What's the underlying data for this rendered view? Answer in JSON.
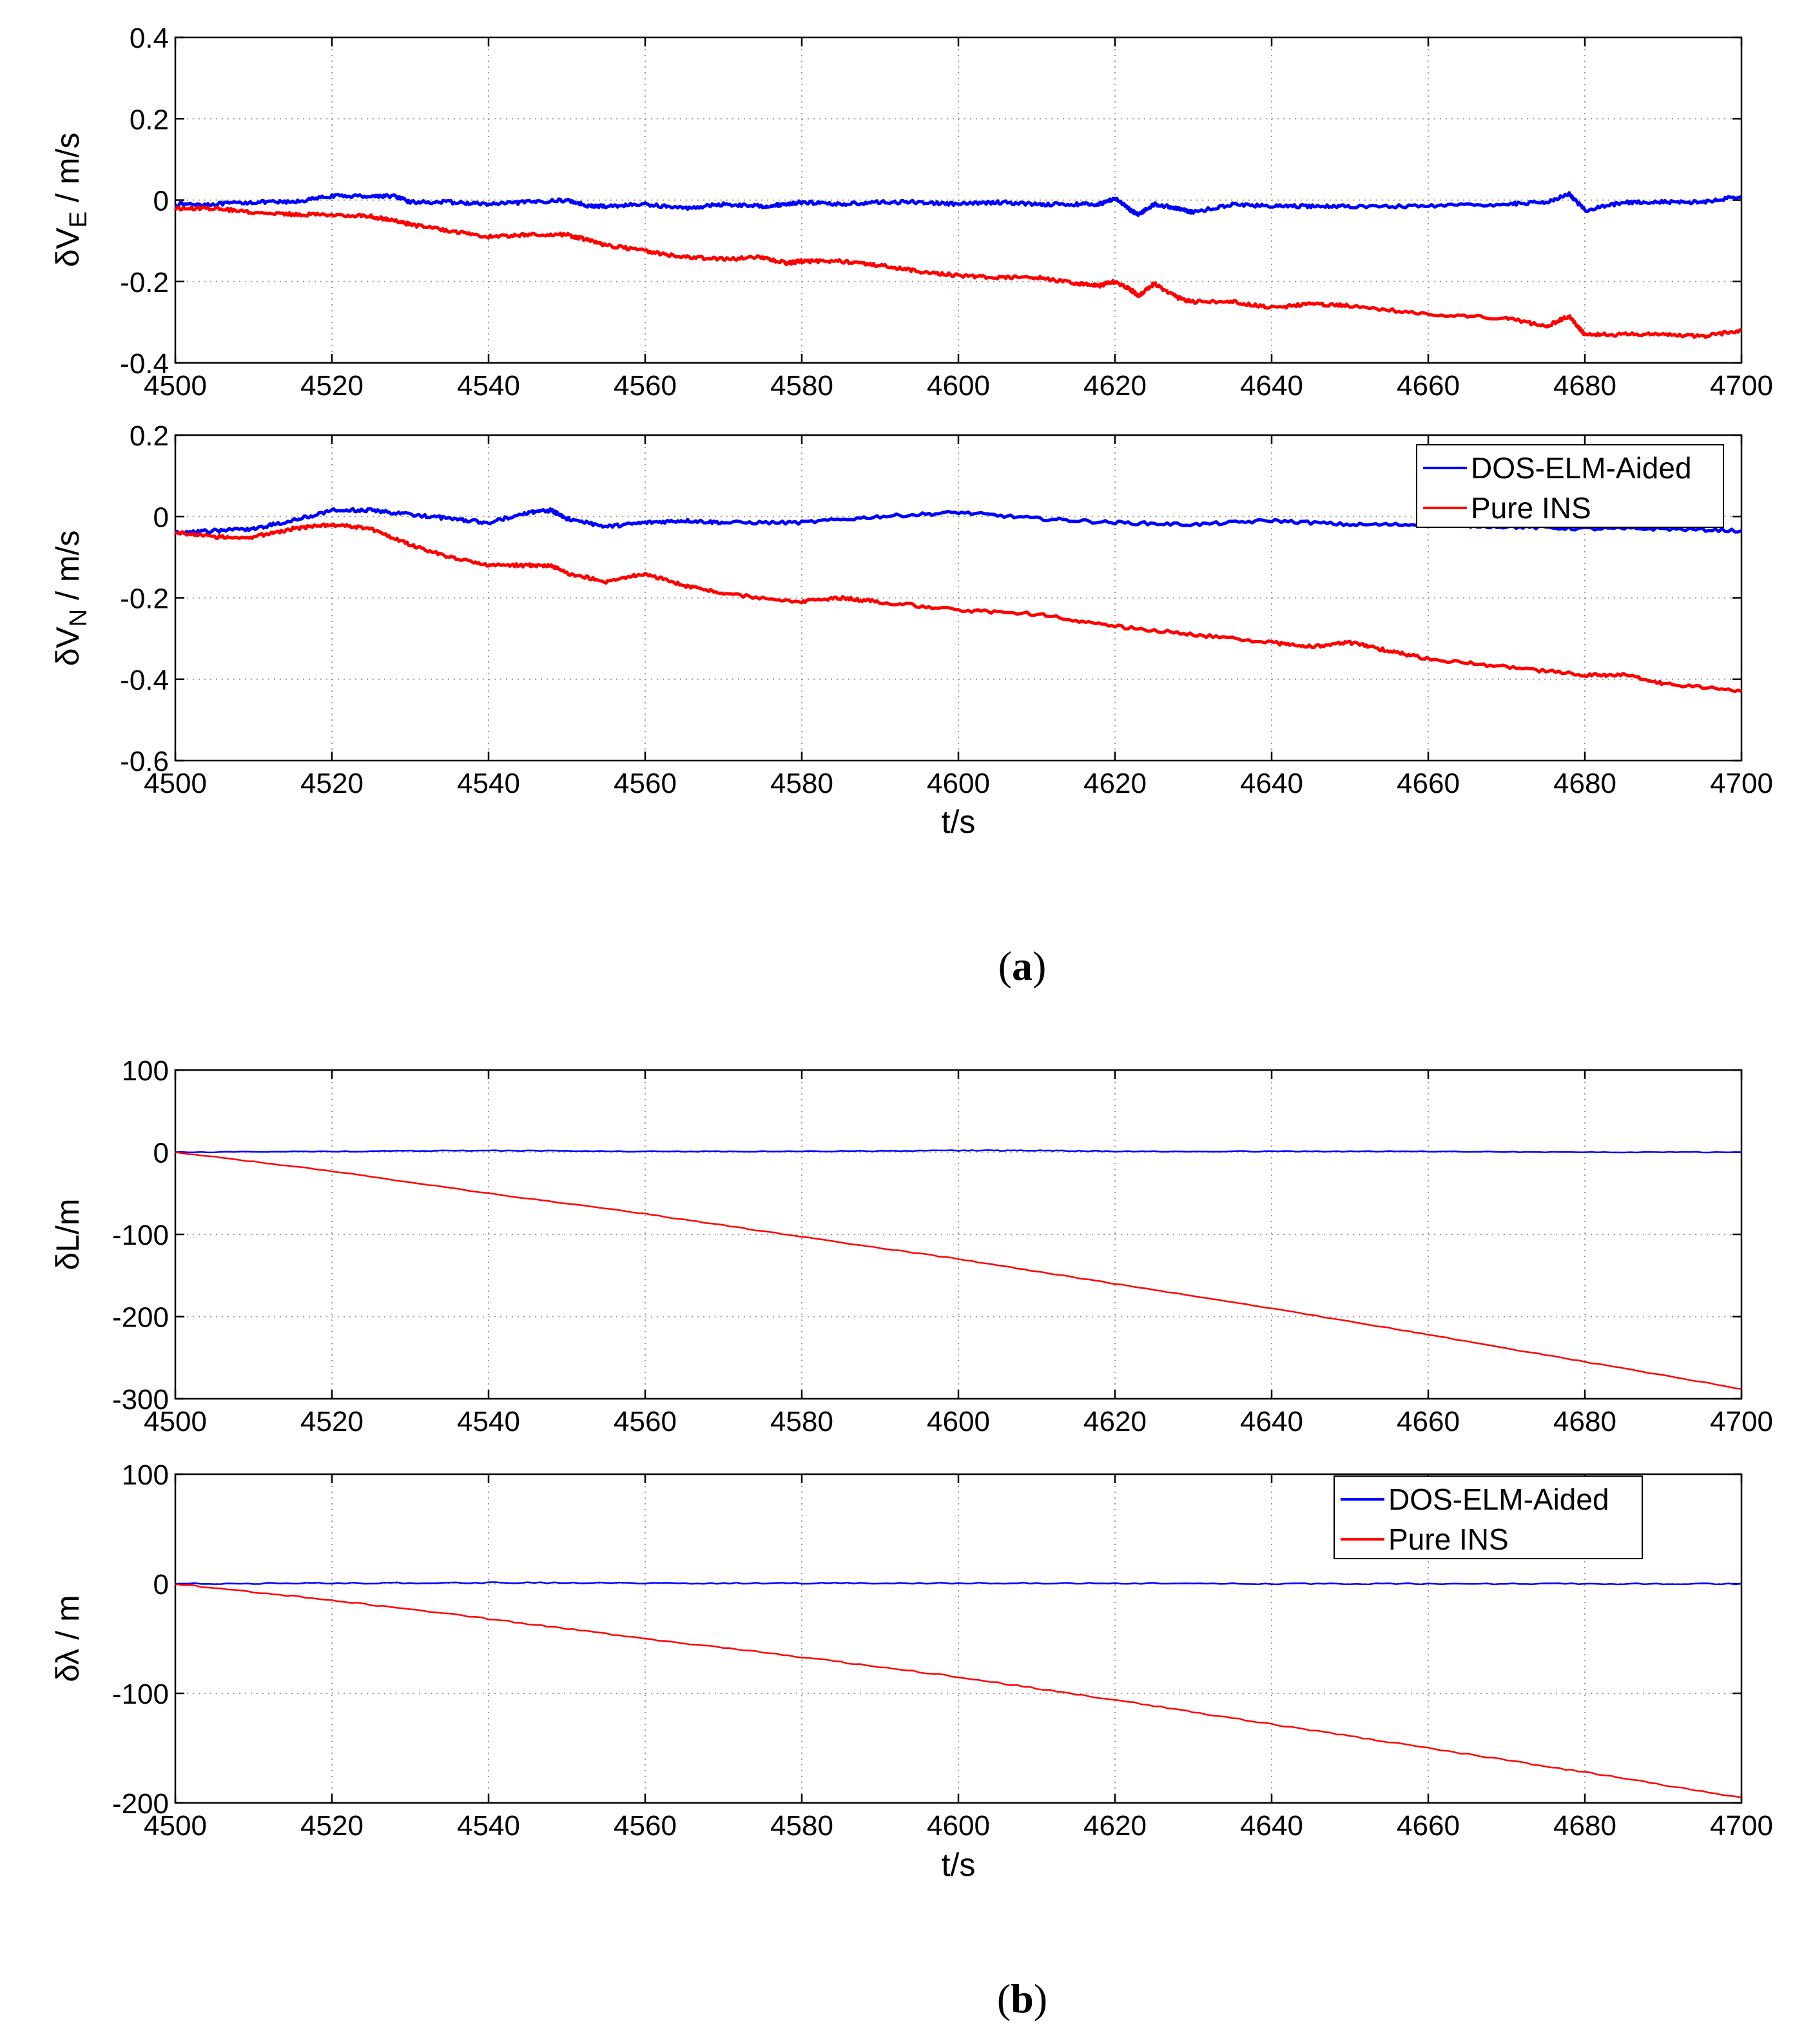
{
  "colors": {
    "blue": "#0000ff",
    "red": "#ff0000"
  },
  "captions": {
    "a": "a",
    "b": "b"
  },
  "chart_data": [
    {
      "type": "line",
      "panel": "a-top",
      "ylabel": {
        "symbol": "δV",
        "sub": "E",
        "unit": " / m/s"
      },
      "xlabel": "",
      "xlim": [
        4500,
        4700
      ],
      "ylim": [
        -0.4,
        0.4
      ],
      "xticks": [
        "4500",
        "4520",
        "4540",
        "4560",
        "4580",
        "4600",
        "4620",
        "4640",
        "4660",
        "4680",
        "4700"
      ],
      "yticks": [
        "0.4",
        "0.2",
        "0",
        "-0.2",
        "-0.4"
      ],
      "grid": true,
      "legend": null,
      "line_width": 5,
      "noise": 0.004,
      "series": [
        {
          "name": "DOS-ELM-Aided",
          "color": "#0000ff",
          "x": [
            4500,
            4505,
            4510,
            4515,
            4520,
            4525,
            4528,
            4530,
            4535,
            4540,
            4545,
            4550,
            4553,
            4555,
            4560,
            4565,
            4570,
            4575,
            4578,
            4580,
            4585,
            4590,
            4595,
            4600,
            4605,
            4610,
            4615,
            4618,
            4620,
            4622,
            4623,
            4625,
            4628,
            4630,
            4635,
            4640,
            4645,
            4650,
            4660,
            4670,
            4675,
            4678,
            4680,
            4685,
            4690,
            4695,
            4700
          ],
          "y": [
            -0.01,
            -0.01,
            -0.005,
            -0.005,
            0.01,
            0.01,
            0.01,
            -0.005,
            -0.005,
            -0.01,
            -0.005,
            0.0,
            -0.015,
            -0.015,
            -0.01,
            -0.02,
            -0.01,
            -0.015,
            -0.01,
            -0.005,
            -0.01,
            -0.005,
            -0.005,
            -0.01,
            -0.005,
            -0.01,
            -0.01,
            -0.01,
            0.005,
            -0.025,
            -0.035,
            -0.01,
            -0.02,
            -0.03,
            -0.01,
            -0.015,
            -0.015,
            -0.015,
            -0.015,
            -0.01,
            -0.005,
            0.015,
            -0.025,
            -0.005,
            -0.005,
            -0.005,
            0.01
          ]
        },
        {
          "name": "Pure INS",
          "color": "#ff0000",
          "x": [
            4500,
            4505,
            4510,
            4515,
            4520,
            4525,
            4528,
            4530,
            4535,
            4540,
            4545,
            4550,
            4553,
            4555,
            4560,
            4565,
            4570,
            4575,
            4578,
            4580,
            4585,
            4590,
            4595,
            4600,
            4605,
            4610,
            4615,
            4618,
            4620,
            4622,
            4623,
            4625,
            4628,
            4630,
            4635,
            4640,
            4645,
            4650,
            4660,
            4670,
            4675,
            4678,
            4680,
            4685,
            4690,
            4695,
            4700
          ],
          "y": [
            -0.02,
            -0.02,
            -0.03,
            -0.035,
            -0.035,
            -0.04,
            -0.05,
            -0.06,
            -0.075,
            -0.09,
            -0.085,
            -0.085,
            -0.1,
            -0.11,
            -0.125,
            -0.14,
            -0.145,
            -0.14,
            -0.155,
            -0.15,
            -0.15,
            -0.16,
            -0.175,
            -0.185,
            -0.19,
            -0.19,
            -0.205,
            -0.21,
            -0.2,
            -0.22,
            -0.235,
            -0.205,
            -0.24,
            -0.25,
            -0.25,
            -0.265,
            -0.255,
            -0.26,
            -0.28,
            -0.29,
            -0.31,
            -0.285,
            -0.33,
            -0.33,
            -0.33,
            -0.335,
            -0.32
          ]
        }
      ]
    },
    {
      "type": "line",
      "panel": "a-bottom",
      "ylabel": {
        "symbol": "δV",
        "sub": "N",
        "unit": " / m/s"
      },
      "xlabel": "t/s",
      "xlim": [
        4500,
        4700
      ],
      "ylim": [
        -0.6,
        0.2
      ],
      "xticks": [
        "4500",
        "4520",
        "4540",
        "4560",
        "4580",
        "4600",
        "4620",
        "4640",
        "4660",
        "4680",
        "4700"
      ],
      "yticks": [
        "0.2",
        "0",
        "-0.2",
        "-0.4",
        "-0.6"
      ],
      "grid": true,
      "legend": "top-right",
      "line_width": 5,
      "noise": 0.004,
      "series": [
        {
          "name": "DOS-ELM-Aided",
          "color": "#0000ff",
          "x": [
            4500,
            4505,
            4510,
            4515,
            4520,
            4525,
            4530,
            4535,
            4540,
            4545,
            4548,
            4550,
            4555,
            4560,
            4565,
            4570,
            4580,
            4590,
            4600,
            4610,
            4620,
            4630,
            4640,
            4650,
            4660,
            4670,
            4680,
            4690,
            4700
          ],
          "y": [
            -0.04,
            -0.035,
            -0.03,
            -0.01,
            0.015,
            0.015,
            0.005,
            -0.005,
            -0.015,
            0.01,
            0.015,
            -0.005,
            -0.025,
            -0.015,
            -0.01,
            -0.015,
            -0.015,
            0.0,
            0.01,
            -0.005,
            -0.015,
            -0.02,
            -0.01,
            -0.02,
            -0.02,
            -0.025,
            -0.03,
            -0.03,
            -0.035
          ]
        },
        {
          "name": "Pure INS",
          "color": "#ff0000",
          "x": [
            4500,
            4505,
            4510,
            4515,
            4520,
            4525,
            4530,
            4535,
            4540,
            4545,
            4548,
            4550,
            4555,
            4560,
            4565,
            4570,
            4580,
            4585,
            4590,
            4600,
            4610,
            4620,
            4630,
            4640,
            4645,
            4650,
            4655,
            4660,
            4670,
            4680,
            4685,
            4690,
            4700
          ],
          "y": [
            -0.04,
            -0.05,
            -0.05,
            -0.03,
            -0.02,
            -0.03,
            -0.07,
            -0.1,
            -0.12,
            -0.12,
            -0.12,
            -0.14,
            -0.16,
            -0.14,
            -0.17,
            -0.19,
            -0.21,
            -0.2,
            -0.21,
            -0.23,
            -0.24,
            -0.27,
            -0.29,
            -0.31,
            -0.32,
            -0.31,
            -0.33,
            -0.35,
            -0.37,
            -0.39,
            -0.39,
            -0.41,
            -0.43
          ]
        }
      ]
    },
    {
      "type": "line",
      "panel": "b-top",
      "ylabel": {
        "symbol": "δL/m",
        "sub": "",
        "unit": ""
      },
      "xlabel": "",
      "xlim": [
        4500,
        4700
      ],
      "ylim": [
        -300,
        100
      ],
      "xticks": [
        "4500",
        "4520",
        "4540",
        "4560",
        "4580",
        "4600",
        "4620",
        "4640",
        "4660",
        "4680",
        "4700"
      ],
      "yticks": [
        "100",
        "0",
        "-100",
        "-200",
        "-300"
      ],
      "grid": true,
      "legend": null,
      "line_width": 2.5,
      "noise": 0.5,
      "series": [
        {
          "name": "DOS-ELM-Aided",
          "color": "#0000ff",
          "x": [
            4500,
            4520,
            4540,
            4560,
            4580,
            4600,
            4610,
            4620,
            4640,
            4660,
            4680,
            4700
          ],
          "y": [
            0,
            1,
            2,
            1,
            1,
            2,
            2,
            1,
            1,
            1,
            0,
            0
          ]
        },
        {
          "name": "Pure INS",
          "color": "#ff0000",
          "x": [
            4500,
            4520,
            4540,
            4560,
            4580,
            4600,
            4620,
            4640,
            4660,
            4680,
            4700
          ],
          "y": [
            0,
            -23,
            -50,
            -75,
            -103,
            -130,
            -160,
            -190,
            -222,
            -255,
            -288
          ]
        }
      ]
    },
    {
      "type": "line",
      "panel": "b-bottom",
      "ylabel": {
        "symbol": "δλ / m",
        "sub": "",
        "unit": ""
      },
      "xlabel": "t/s",
      "xlim": [
        4500,
        4700
      ],
      "ylim": [
        -200,
        100
      ],
      "xticks": [
        "4500",
        "4520",
        "4540",
        "4560",
        "4580",
        "4600",
        "4620",
        "4640",
        "4660",
        "4680",
        "4700"
      ],
      "yticks": [
        "100",
        "0",
        "-100",
        "-200"
      ],
      "grid": true,
      "legend": "top-right",
      "line_width": 2.5,
      "noise": 0.6,
      "series": [
        {
          "name": "DOS-ELM-Aided",
          "color": "#0000ff",
          "x": [
            4500,
            4520,
            4540,
            4560,
            4580,
            4600,
            4620,
            4640,
            4660,
            4680,
            4700
          ],
          "y": [
            0,
            0.5,
            1,
            0.5,
            0.5,
            0.5,
            0.5,
            0,
            0,
            0,
            0
          ]
        },
        {
          "name": "Pure INS",
          "color": "#ff0000",
          "x": [
            4500,
            4520,
            4540,
            4560,
            4580,
            4600,
            4620,
            4640,
            4660,
            4680,
            4700
          ],
          "y": [
            0,
            -15,
            -32,
            -50,
            -67,
            -85,
            -106,
            -128,
            -150,
            -172,
            -195
          ]
        }
      ]
    }
  ]
}
